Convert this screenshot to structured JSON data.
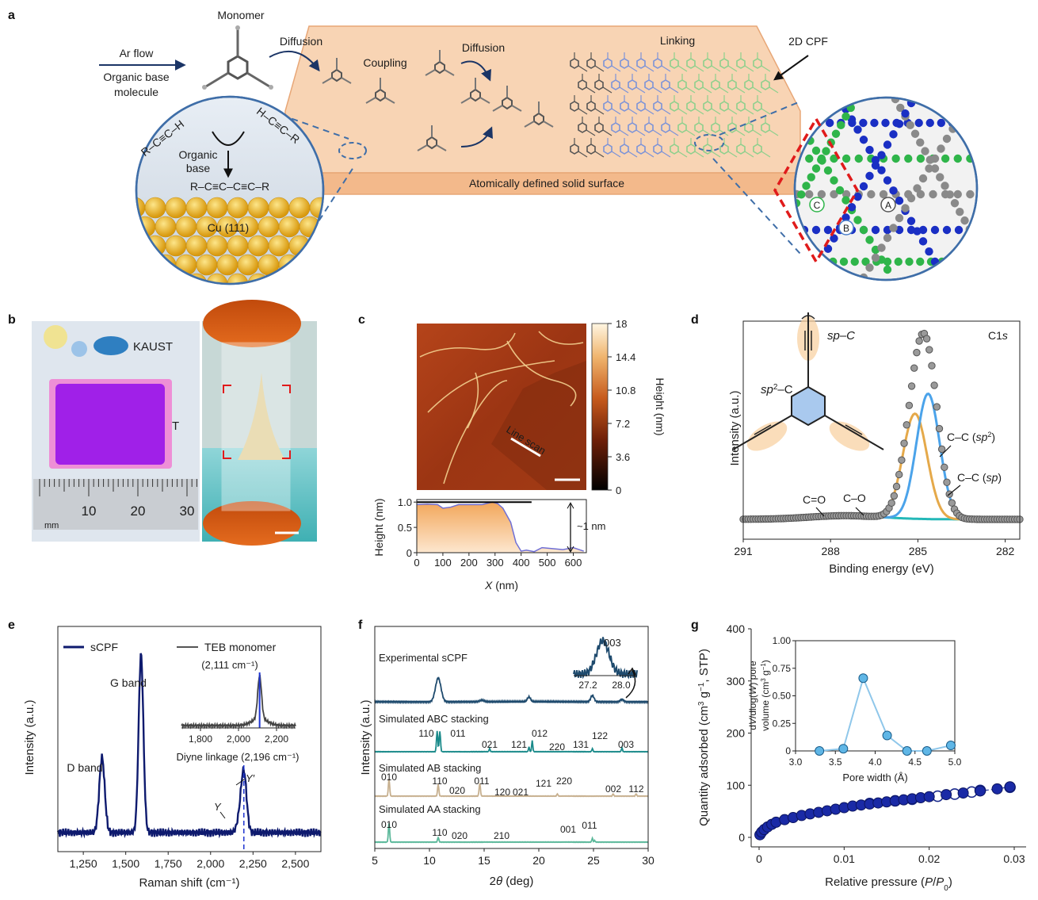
{
  "panel_labels": [
    "a",
    "b",
    "c",
    "d",
    "e",
    "f",
    "g"
  ],
  "a": {
    "monomer": "Monomer",
    "ar_flow": "Ar flow",
    "organic_base_molecule_1": "Organic base",
    "organic_base_molecule_2": "molecule",
    "diffusion1": "Diffusion",
    "coupling": "Coupling",
    "diffusion2": "Diffusion",
    "linking": "Linking",
    "cpf": "2D CPF",
    "surface": "Atomically defined solid surface",
    "rxn_left": "R–C≡C–H",
    "rxn_right": "H–C≡C–R",
    "organic": "Organic",
    "base": "base",
    "product": "R–C≡C–C≡C–R",
    "cu": "Cu (111)",
    "site_a": "A",
    "site_b": "B",
    "site_c": "C",
    "colors": {
      "surface": "#f6c7a0",
      "cu": "#f2b728",
      "blue": "#1a2fc4",
      "green": "#2fb54a",
      "grey": "#8a8a8a",
      "red": "#e01b1b"
    }
  },
  "b": {
    "kaust": "KAUST",
    "kaust2": "ST",
    "ruler_ticks": [
      "10",
      "20",
      "30"
    ],
    "ruler_unit": "mm",
    "film_color": "#a020e8"
  },
  "c": {
    "line_scan": "Line scan",
    "cbar_label": "Height (nm)",
    "cbar_ticks": [
      "18",
      "14.4",
      "10.8",
      "7.2",
      "3.6",
      "0"
    ],
    "chart_data": {
      "type": "line",
      "xlabel": "X (nm)",
      "ylabel": "Height (nm)",
      "xlim": [
        0,
        650
      ],
      "ylim": [
        0,
        1.05
      ],
      "x_ticks": [
        "0",
        "100",
        "200",
        "300",
        "400",
        "500",
        "600"
      ],
      "y_ticks": [
        "0",
        "0.5",
        "1.0"
      ],
      "annotation": "~1 nm",
      "series": [
        {
          "x": [
            0,
            40,
            80,
            100,
            130,
            160,
            200,
            250,
            290,
            310,
            330,
            360,
            380,
            400,
            420,
            450,
            480,
            520,
            560,
            600,
            640
          ],
          "y": [
            0.95,
            0.96,
            0.95,
            0.88,
            0.9,
            0.95,
            0.95,
            0.95,
            1.0,
            0.97,
            0.88,
            0.6,
            0.2,
            0.03,
            0.05,
            0.02,
            0.1,
            0.08,
            0.06,
            0.1,
            0.03
          ]
        }
      ]
    }
  },
  "d": {
    "c1s": "C1s",
    "sp_c": "sp–C",
    "sp2_c": "sp²–C",
    "ann_sp2": "C–C (sp²)",
    "ann_sp": "C–C (sp)",
    "ann_co_double": "C=O",
    "ann_co": "C–O",
    "chart_data": {
      "type": "line",
      "xlabel": "Binding energy (eV)",
      "ylabel": "Intensity (a.u.)",
      "xlim": [
        291,
        281.5
      ],
      "x_ticks": [
        "291",
        "288",
        "285",
        "282"
      ],
      "series": [
        {
          "name": "sp",
          "color": "#4ba3ea",
          "center": 284.65,
          "height": 0.62,
          "width": 0.72
        },
        {
          "name": "sp2",
          "color": "#e5a94a",
          "center": 285.1,
          "height": 0.52,
          "width": 0.75
        },
        {
          "name": "baseline",
          "color": "#24b8b8"
        },
        {
          "name": "measured",
          "color": "#808080"
        }
      ]
    }
  },
  "e": {
    "legend_scpf": "sCPF",
    "legend_teb": "TEB monomer",
    "inset_peak": "(2,111 cm⁻¹)",
    "inset_xticks": [
      "1,800",
      "2,000",
      "2,200"
    ],
    "inset_caption": "Diyne linkage (2,196 cm⁻¹)",
    "d_band": "D band",
    "g_band": "G band",
    "y_label_small": "Y",
    "y_prime": "Y′",
    "chart_data": {
      "type": "line",
      "xlabel": "Raman shift (cm⁻¹)",
      "ylabel": "Intensity (a.u.)",
      "xlim": [
        1100,
        2650
      ],
      "x_ticks": [
        "1,250",
        "1,500",
        "1,750",
        "2,000",
        "2,250",
        "2,500"
      ],
      "peaks": [
        {
          "x": 1360,
          "h": 0.38
        },
        {
          "x": 1590,
          "h": 0.9
        },
        {
          "x": 2196,
          "h": 0.3
        },
        {
          "x": 2170,
          "h": 0.06
        }
      ],
      "series_color": "#0e1a6e"
    }
  },
  "f": {
    "exp_label": "Experimental sCPF",
    "abc_label": "Simulated ABC stacking",
    "ab_label": "Simulated AB stacking",
    "aa_label": "Simulated AA stacking",
    "inset_label": "003",
    "inset_ticks": [
      "27.2",
      "28.0"
    ],
    "abc_idx": [
      "110",
      "011",
      "021",
      "121",
      "012",
      "220",
      "131",
      "122",
      "003"
    ],
    "ab_idx": [
      "010",
      "110",
      "020",
      "011",
      "120",
      "021",
      "121",
      "220",
      "002",
      "112"
    ],
    "aa_idx": [
      "010",
      "110",
      "020",
      "210",
      "001",
      "011"
    ],
    "chart_data": {
      "type": "line",
      "xlabel": "2θ (deg)",
      "ylabel": "Intensity (a.u.)",
      "xlim": [
        5,
        30
      ],
      "x_ticks": [
        "5",
        "10",
        "15",
        "20",
        "25",
        "30"
      ],
      "colors": {
        "exp": "#1f4b6e",
        "abc": "#1a8a8a",
        "ab": "#c7b08f",
        "aa": "#5bb89a"
      }
    }
  },
  "g": {
    "chart_data": {
      "type": "scatter",
      "xlabel": "Relative pressure (P/P₀)",
      "ylabel": "Quantity adsorbed (cm³ g⁻¹, STP)",
      "xlim": [
        0,
        0.03
      ],
      "ylim": [
        0,
        400
      ],
      "x_ticks": [
        "0",
        "0.01",
        "0.02",
        "0.03"
      ],
      "y_ticks": [
        "0",
        "100",
        "200",
        "300",
        "400"
      ],
      "series": [
        {
          "name": "adsorption",
          "x": [
            0.0001,
            0.0003,
            0.0006,
            0.001,
            0.0015,
            0.002,
            0.003,
            0.004,
            0.005,
            0.006,
            0.007,
            0.008,
            0.009,
            0.01,
            0.011,
            0.012,
            0.013,
            0.014,
            0.015,
            0.016,
            0.017,
            0.018,
            0.019,
            0.02,
            0.022,
            0.024,
            0.026,
            0.028,
            0.0295
          ],
          "y": [
            5,
            10,
            15,
            20,
            25,
            29,
            34,
            38,
            42,
            45,
            48,
            51,
            54,
            57,
            60,
            62,
            64,
            66,
            68,
            70,
            72,
            74,
            76,
            78,
            82,
            85,
            89,
            93,
            97
          ]
        },
        {
          "name": "desorption",
          "x": [
            0.013,
            0.016,
            0.018,
            0.021,
            0.023,
            0.025,
            0.026,
            0.0295
          ],
          "y": [
            65,
            70,
            73,
            79,
            83,
            87,
            90,
            96
          ]
        }
      ],
      "inset": {
        "xlabel": "Pore width (Å)",
        "ylabel": "dV/dlog(W) pore volume (cm³ g⁻¹)",
        "xlim": [
          3.0,
          5.0
        ],
        "ylim": [
          0,
          1.0
        ],
        "x_ticks": [
          "3.0",
          "3.5",
          "4.0",
          "4.5",
          "5.0"
        ],
        "y_ticks": [
          "0",
          "0.25",
          "0.50",
          "0.75",
          "1.00"
        ],
        "x": [
          3.3,
          3.6,
          3.85,
          4.15,
          4.4,
          4.65,
          4.95
        ],
        "y": [
          0.0,
          0.02,
          0.66,
          0.14,
          0.0,
          0.0,
          0.05
        ]
      }
    }
  }
}
